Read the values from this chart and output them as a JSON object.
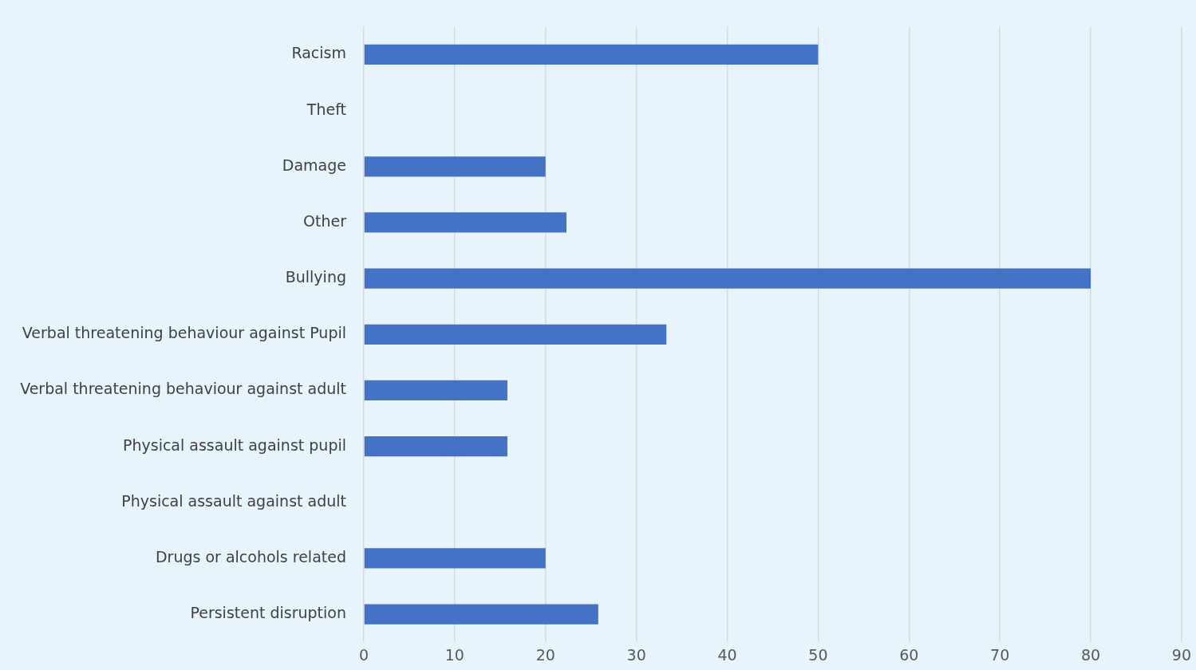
{
  "chart_data": {
    "type": "bar",
    "orientation": "horizontal",
    "categories": [
      "Racism",
      "Theft",
      "Damage",
      "Other",
      "Bullying",
      "Verbal threatening behaviour against Pupil",
      "Verbal threatening behaviour against adult",
      "Physical assault against pupil",
      "Physical assault against adult",
      "Drugs or alcohols related",
      "Persistent disruption"
    ],
    "values": [
      50,
      0,
      20,
      22.3,
      80,
      33.3,
      15.8,
      15.8,
      0,
      20,
      25.8
    ],
    "color": "#4472c4",
    "xlim": [
      0,
      90
    ],
    "xticks": [
      0,
      10,
      20,
      30,
      40,
      50,
      60,
      70,
      80,
      90
    ],
    "grid": "x"
  }
}
